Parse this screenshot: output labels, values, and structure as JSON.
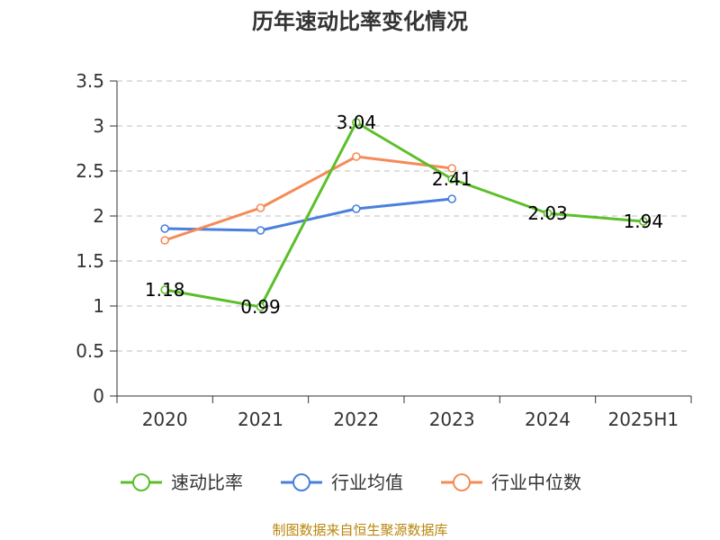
{
  "chart_data": {
    "type": "line",
    "title": "历年速动比率变化情况",
    "categories": [
      "2020",
      "2021",
      "2022",
      "2023",
      "2024",
      "2025H1"
    ],
    "ylim": [
      0,
      3.5
    ],
    "yticks": [
      "0",
      "0.5",
      "1",
      "1.5",
      "2",
      "2.5",
      "3",
      "3.5"
    ],
    "grid": true,
    "legend_position": "bottom",
    "series": [
      {
        "name": "速动比率",
        "color": "#5cbf2a",
        "values": [
          1.18,
          0.99,
          3.04,
          2.41,
          2.03,
          1.94
        ],
        "labels": [
          "1.18",
          "0.99",
          "3.04",
          "2.41",
          "2.03",
          "1.94"
        ]
      },
      {
        "name": "行业均值",
        "color": "#4a7fdc",
        "values": [
          1.86,
          1.84,
          2.08,
          2.19,
          null,
          null
        ]
      },
      {
        "name": "行业中位数",
        "color": "#f58b57",
        "values": [
          1.73,
          2.09,
          2.66,
          2.53,
          null,
          null
        ]
      }
    ]
  },
  "source_note": "制图数据来自恒生聚源数据库"
}
